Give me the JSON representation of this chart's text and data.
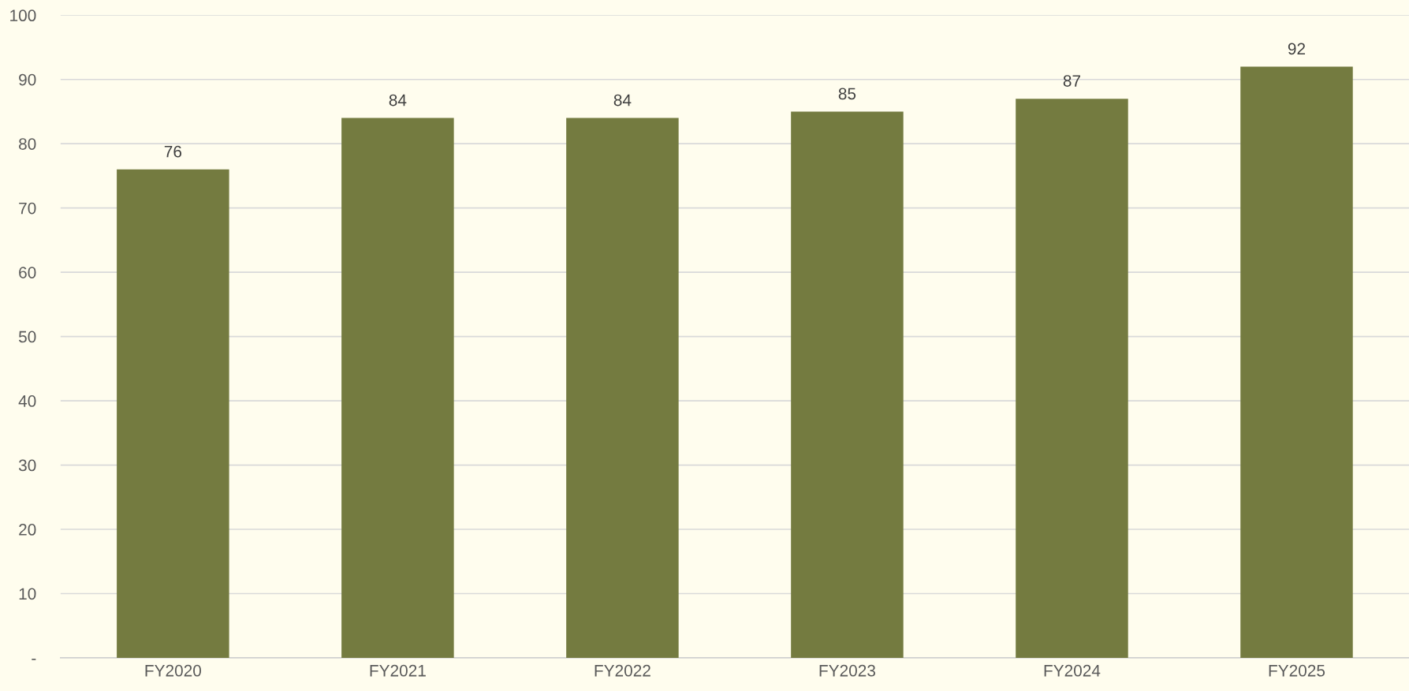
{
  "chart_data": {
    "type": "bar",
    "categories": [
      "FY2020",
      "FY2021",
      "FY2022",
      "FY2023",
      "FY2024",
      "FY2025"
    ],
    "values": [
      76,
      84,
      84,
      85,
      87,
      92
    ],
    "color": "#747b40",
    "ylim": [
      0,
      100
    ],
    "yticks": [
      {
        "value": 0,
        "label": "-"
      },
      10,
      20,
      30,
      40,
      50,
      60,
      70,
      80,
      90,
      100
    ],
    "grid": "y",
    "data_labels": true
  }
}
